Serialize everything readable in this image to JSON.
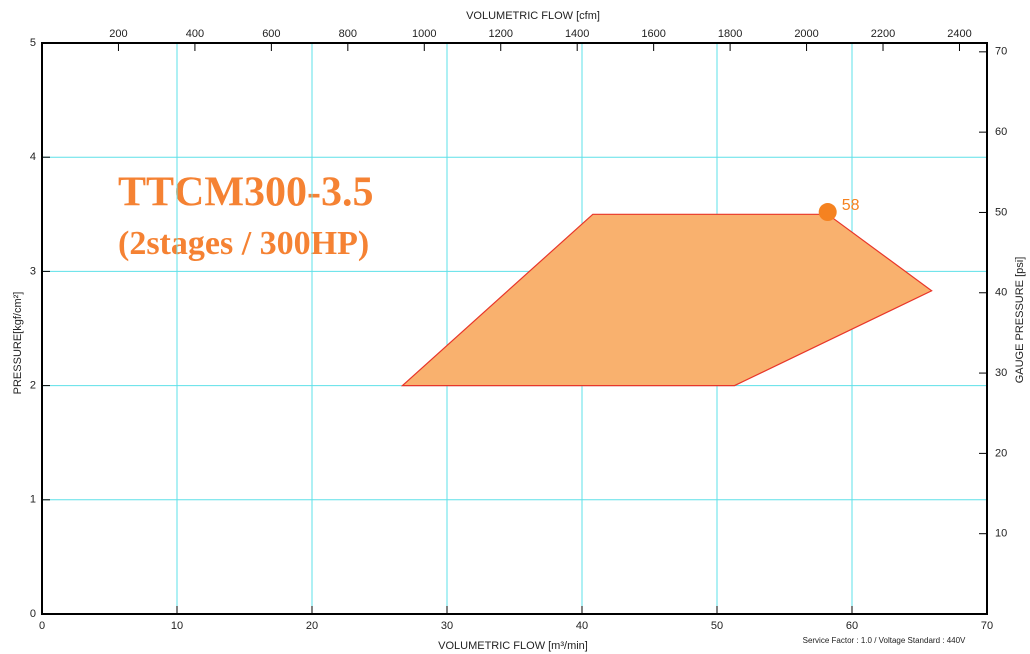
{
  "chart_data": {
    "type": "envelope",
    "title": "TTCM300-3.5",
    "subtitle": "(2stages / 300HP)",
    "x_label": "VOLUMETRIC FLOW [m³/min]",
    "x2_label": "VOLUMETRIC FLOW [cfm]",
    "y_label": "PRESSURE[kgf/cm²]",
    "y2_label": "GAUGE PRESSURE [psi]",
    "footnote": "Service Factor : 1.0 / Voltage Standard : 440V",
    "xlim": [
      0,
      70
    ],
    "xticks": [
      0,
      10,
      20,
      30,
      40,
      50,
      60,
      70
    ],
    "ylim": [
      0,
      5
    ],
    "yticks": [
      0,
      1,
      2,
      3,
      4,
      5
    ],
    "x2lim": [
      0,
      2472
    ],
    "x2ticks": [
      200,
      400,
      600,
      800,
      1000,
      1200,
      1400,
      1600,
      1800,
      2000,
      2200,
      2400
    ],
    "y2lim": [
      0,
      71.1
    ],
    "y2ticks": [
      10,
      20,
      30,
      40,
      50,
      60,
      70
    ],
    "grid": true,
    "grid_color": "#5ee0e8",
    "polygon": {
      "x": [
        26.7,
        40.8,
        58.2,
        65.9,
        51.3
      ],
      "y": [
        2.0,
        3.5,
        3.5,
        2.83,
        2.0
      ],
      "color": "#f9b16e",
      "edge_color": "#e8362a"
    },
    "point": {
      "x": 58.2,
      "y": 3.52,
      "label": "58",
      "color": "#f58220"
    }
  }
}
